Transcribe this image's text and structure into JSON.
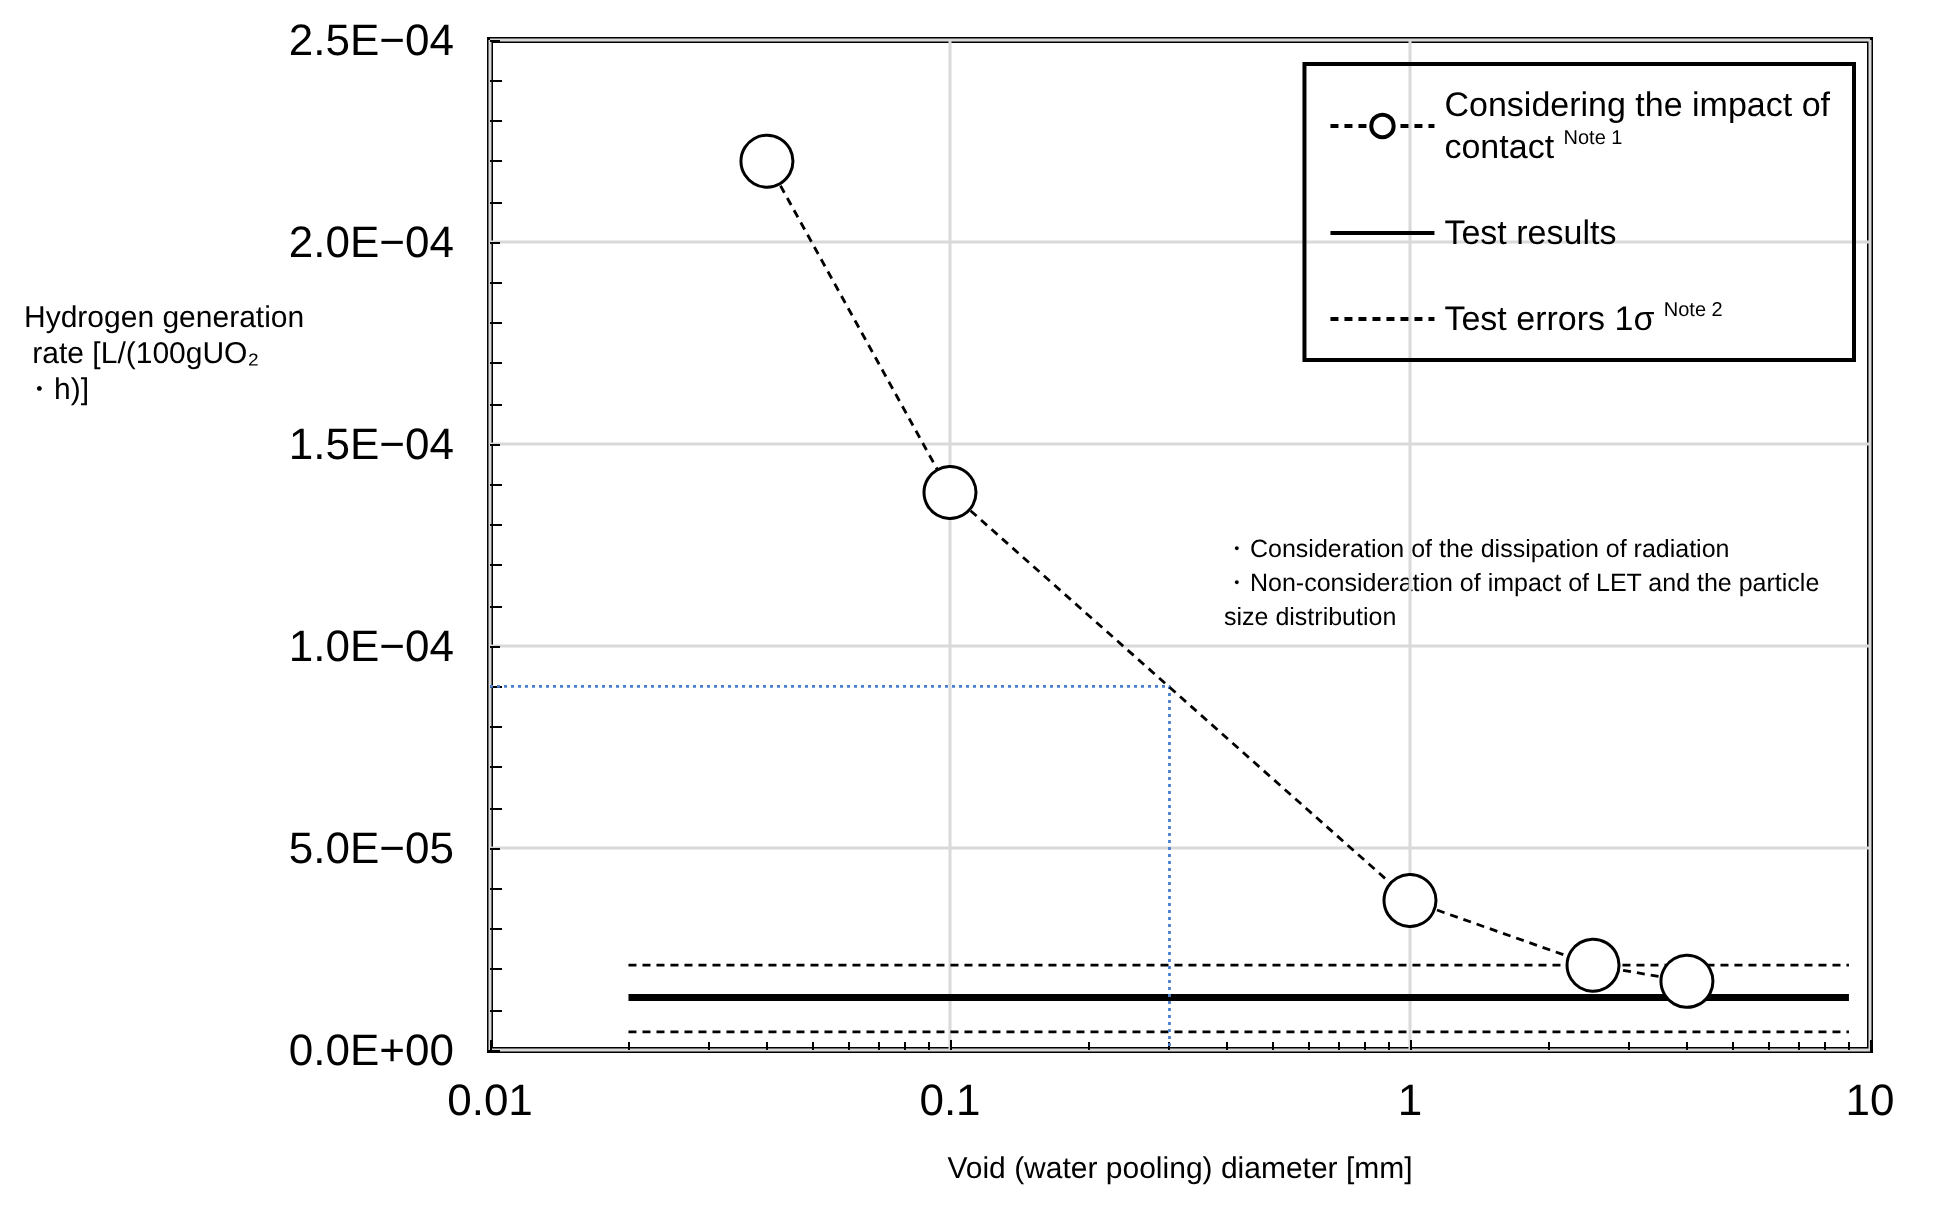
{
  "chart_data": {
    "type": "line",
    "xlabel": "Void (water pooling) diameter [mm]",
    "ylabel": "Hydrogen generation rate [L/(100gUO₂・h)]",
    "log": "x",
    "xlim": [
      0.01,
      10
    ],
    "xticks": [
      0.01,
      0.1,
      1,
      10
    ],
    "ylim": [
      0,
      0.00025
    ],
    "yticks": [
      {
        "value": 0,
        "label": "0.0E+00"
      },
      {
        "value": 5e-05,
        "label": "5.0E−05"
      },
      {
        "value": 0.0001,
        "label": "1.0E−04"
      },
      {
        "value": 0.00015,
        "label": "1.5E−04"
      },
      {
        "value": 0.0002,
        "label": "2.0E−04"
      },
      {
        "value": 0.00025,
        "label": "2.5E−04"
      }
    ],
    "grid": true,
    "legend": "top right",
    "series": [
      {
        "name": "Considering the impact of contact $^{Note 1}$",
        "color": "#000000",
        "x": [
          0.04,
          0.1,
          1,
          2.5,
          4
        ],
        "values": [
          0.00022,
          0.000138,
          3.7e-05,
          2.1e-05,
          1.7e-05
        ],
        "marker": "circle",
        "line_style": "dashed"
      },
      {
        "name": "Test results",
        "color": "#000000",
        "x": [
          0.02,
          9
        ],
        "values": [
          1.3e-05,
          1.3e-05
        ],
        "marker": "none",
        "line_style": "solid"
      },
      {
        "name": "Test errors 1σ $^{Note 2}$",
        "color": "#000000",
        "x": [
          0.02,
          9
        ],
        "values": [
          2.1e-05,
          2.1e-05
        ],
        "marker": "none",
        "line_style": "dashed"
      },
      {
        "color": "#000000",
        "x": [
          0.02,
          9
        ],
        "values": [
          4.5e-06,
          4.5e-06
        ],
        "marker": "none",
        "line_style": "dashed"
      },
      {
        "color": "#4a7fd0",
        "x": [
          0.01,
          0.3,
          0.3
        ],
        "values": [
          9e-05,
          9e-05,
          0
        ],
        "marker": "none",
        "line_style": "dotted"
      }
    ],
    "annotations": [
      "・Consideration of the dissipation of radiation",
      "・Non-consideration of impact of LET and the particle size distribution"
    ]
  }
}
